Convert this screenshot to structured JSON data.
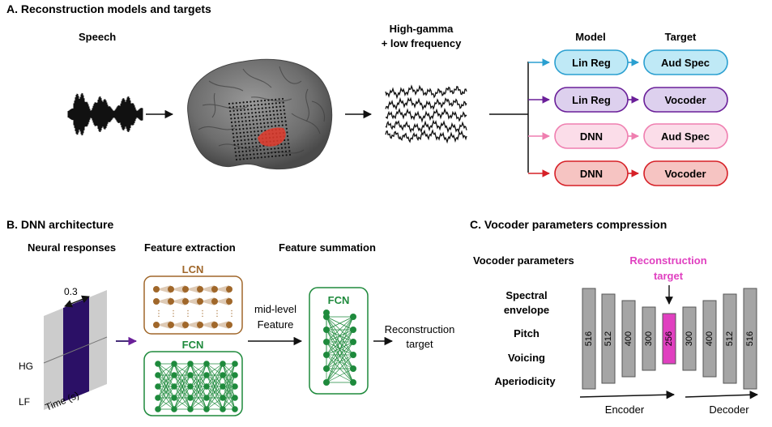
{
  "panelA": {
    "title": "A. Reconstruction models and targets",
    "speech_label": "Speech",
    "signal_label_line1": "High-gamma",
    "signal_label_line2": "+ low frequency",
    "model_header": "Model",
    "target_header": "Target",
    "rows": [
      {
        "model": "Lin Reg",
        "target": "Aud Spec",
        "color": "#2a9fd0",
        "fill": "#bfe9f6"
      },
      {
        "model": "Lin Reg",
        "target": "Vocoder",
        "color": "#6a1f99",
        "fill": "#ddd0ee"
      },
      {
        "model": "DNN",
        "target": "Aud Spec",
        "color": "#ef7fb0",
        "fill": "#fbdde9"
      },
      {
        "model": "DNN",
        "target": "Vocoder",
        "color": "#d62027",
        "fill": "#f6c4c2"
      }
    ]
  },
  "panelB": {
    "title": "B. DNN architecture",
    "neural_responses": "Neural responses",
    "feature_extraction": "Feature extraction",
    "feature_summation": "Feature summation",
    "window_label": "0.3",
    "hg_label": "HG",
    "lf_label": "LF",
    "time_label": "Time (s)",
    "lcn_label": "LCN",
    "fcn_label": "FCN",
    "fcn2_label": "FCN",
    "midlevel_line1": "mid-level",
    "midlevel_line2": "Feature",
    "recon_line1": "Reconstruction",
    "recon_line2": "target",
    "lcn_color": "#a0672a",
    "fcn_color": "#1e8a3c",
    "window_color": "#2b1066"
  },
  "panelC": {
    "title": "C. Vocoder parameters compression",
    "vocoder_params": "Vocoder parameters",
    "recon_line1": "Reconstruction",
    "recon_line2": "target",
    "params": [
      "Spectral",
      "envelope",
      "Pitch",
      "Voicing",
      "Aperiodicity"
    ],
    "layers": [
      "516",
      "512",
      "400",
      "300",
      "256",
      "300",
      "400",
      "512",
      "516"
    ],
    "encoder_label": "Encoder",
    "decoder_label": "Decoder",
    "highlight_color": "#e040c0"
  }
}
